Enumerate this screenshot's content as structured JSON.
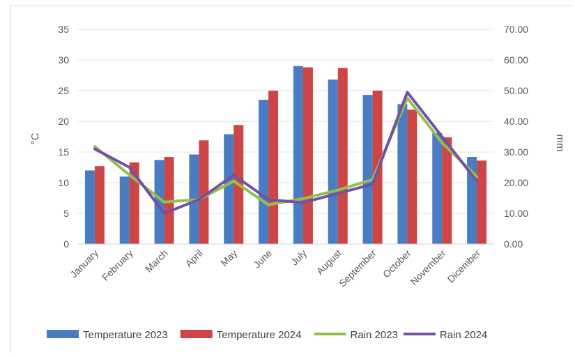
{
  "chart_data": {
    "type": "bar",
    "categories": [
      "January",
      "February",
      "March",
      "April",
      "May",
      "June",
      "July",
      "August",
      "September",
      "October",
      "November",
      "Dicember"
    ],
    "series": [
      {
        "name": "Temperature 2023",
        "kind": "bar",
        "axis": "left",
        "color": "#4a7cc2",
        "values": [
          12.0,
          11.0,
          13.7,
          14.6,
          17.9,
          23.5,
          29.0,
          26.8,
          24.3,
          22.8,
          18.1,
          14.2
        ]
      },
      {
        "name": "Temperature 2024",
        "kind": "bar",
        "axis": "left",
        "color": "#cc4645",
        "values": [
          12.7,
          13.3,
          14.2,
          16.9,
          19.4,
          25.0,
          28.8,
          28.7,
          25.0,
          21.9,
          17.4,
          13.6
        ]
      },
      {
        "name": "Rain 2023",
        "kind": "line",
        "axis": "right",
        "color": "#92c04f",
        "values": [
          31.8,
          22.5,
          13.7,
          14.5,
          20.5,
          12.8,
          14.8,
          17.6,
          21.0,
          47.6,
          33.0,
          22.0
        ]
      },
      {
        "name": "Rain 2024",
        "kind": "line",
        "axis": "right",
        "color": "#7550a4",
        "values": [
          31.0,
          25.0,
          10.0,
          14.5,
          22.5,
          14.5,
          13.5,
          16.5,
          19.5,
          49.5,
          35.0,
          20.5
        ]
      }
    ],
    "y_left": {
      "label": "°C",
      "ylim": [
        0,
        35
      ],
      "ticks": [
        "0",
        "5",
        "10",
        "15",
        "20",
        "25",
        "30",
        "35"
      ]
    },
    "y_right": {
      "label": "mm",
      "ylim": [
        0,
        70
      ],
      "ticks": [
        "0.00",
        "10.00",
        "20.00",
        "30.00",
        "40.00",
        "50.00",
        "60.00",
        "70.00"
      ]
    },
    "grid": true,
    "legend": "bottom"
  }
}
